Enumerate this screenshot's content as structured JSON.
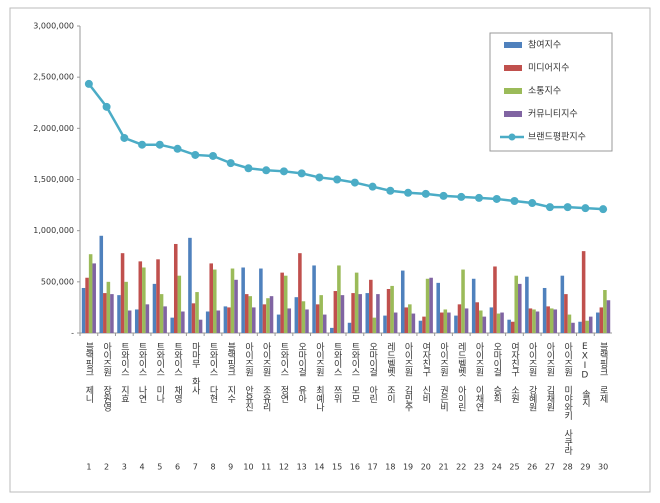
{
  "chart_data": {
    "type": "bar",
    "categories": [
      "블랙핑크 제니",
      "아이즈원 장원영",
      "트와이스 지효",
      "트와이스 나연",
      "트와이스 미나",
      "트와이스 채영",
      "마마무 화사",
      "트와이스 다현",
      "블랙핑크 지수",
      "아이즈원 안유진",
      "아이즈원 조유리",
      "트와이스 정연",
      "오마이걸 유아",
      "아이즈원 최예나",
      "트와이스 쯔위",
      "트와이스 모모",
      "오마이걸 아린",
      "레드벨벳 조이",
      "아이즈원 김민주",
      "여자친구 신비",
      "아이즈원 권은비",
      "레드벨벳 아이린",
      "아이즈원 이채연",
      "오마이걸 승희",
      "여자친구 소원",
      "아이즈원 강혜원",
      "아이즈원 김채원",
      "아이즈원 미야와키 사쿠라",
      "EXID 솔지",
      "블랙핑크 로제"
    ],
    "ranks": [
      1,
      2,
      3,
      4,
      5,
      6,
      7,
      8,
      9,
      10,
      11,
      12,
      13,
      14,
      15,
      16,
      17,
      18,
      19,
      20,
      21,
      22,
      23,
      24,
      25,
      26,
      27,
      28,
      29,
      30
    ],
    "series": [
      {
        "name": "참여지수",
        "type": "bar",
        "color": "#4f81bd",
        "values": [
          440000,
          950000,
          370000,
          230000,
          480000,
          150000,
          930000,
          210000,
          260000,
          640000,
          630000,
          180000,
          350000,
          660000,
          50000,
          100000,
          390000,
          170000,
          610000,
          120000,
          490000,
          170000,
          530000,
          250000,
          130000,
          550000,
          440000,
          560000,
          110000,
          200000
        ]
      },
      {
        "name": "미디어지수",
        "type": "bar",
        "color": "#c0504d",
        "values": [
          540000,
          390000,
          780000,
          700000,
          720000,
          870000,
          290000,
          680000,
          250000,
          380000,
          280000,
          590000,
          780000,
          280000,
          410000,
          390000,
          520000,
          430000,
          250000,
          160000,
          200000,
          280000,
          300000,
          650000,
          110000,
          240000,
          260000,
          380000,
          800000,
          250000
        ]
      },
      {
        "name": "소통지수",
        "type": "bar",
        "color": "#9bbb59",
        "values": [
          770000,
          500000,
          500000,
          640000,
          380000,
          560000,
          400000,
          620000,
          630000,
          360000,
          340000,
          560000,
          310000,
          370000,
          660000,
          590000,
          150000,
          460000,
          280000,
          530000,
          230000,
          620000,
          220000,
          190000,
          560000,
          230000,
          240000,
          180000,
          120000,
          420000
        ]
      },
      {
        "name": "커뮤니티지수",
        "type": "bar",
        "color": "#8064a2",
        "values": [
          680000,
          380000,
          220000,
          280000,
          260000,
          210000,
          130000,
          220000,
          520000,
          250000,
          360000,
          240000,
          230000,
          180000,
          370000,
          380000,
          380000,
          200000,
          190000,
          540000,
          200000,
          240000,
          160000,
          200000,
          480000,
          210000,
          230000,
          100000,
          160000,
          320000
        ]
      },
      {
        "name": "브랜드평판지수",
        "type": "line",
        "color": "#4bacc6",
        "values": [
          2434000,
          2210000,
          1906000,
          1840000,
          1840000,
          1800000,
          1740000,
          1730000,
          1660000,
          1610000,
          1590000,
          1580000,
          1560000,
          1520000,
          1500000,
          1470000,
          1430000,
          1390000,
          1370000,
          1360000,
          1340000,
          1330000,
          1320000,
          1310000,
          1290000,
          1270000,
          1230000,
          1230000,
          1220000,
          1210000
        ]
      }
    ],
    "ylim": [
      0,
      3000000
    ],
    "yticks": [
      {
        "value": 0,
        "label": "-"
      },
      {
        "value": 500000,
        "label": "500,000"
      },
      {
        "value": 1000000,
        "label": "1,000,000"
      },
      {
        "value": 1500000,
        "label": "1,500,000"
      },
      {
        "value": 2000000,
        "label": "2,000,000"
      },
      {
        "value": 2500000,
        "label": "2,500,000"
      },
      {
        "value": 3000000,
        "label": "3,000,000"
      }
    ],
    "grid": false,
    "legend": "top-right"
  }
}
